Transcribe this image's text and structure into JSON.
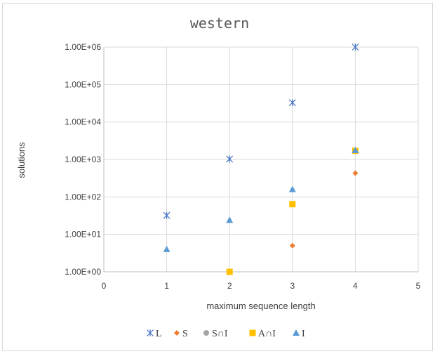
{
  "chart_data": {
    "type": "scatter",
    "title": "western",
    "xlabel": "maximum sequence length",
    "ylabel": "solutions",
    "xlim": [
      0,
      5
    ],
    "ylim": [
      1,
      1000000
    ],
    "yscale": "log",
    "xticks": [
      "0",
      "1",
      "2",
      "3",
      "4",
      "5"
    ],
    "yticks": [
      "1.00E+00",
      "1.00E+01",
      "1.00E+02",
      "1.00E+03",
      "1.00E+04",
      "1.00E+05",
      "1.00E+06"
    ],
    "grid": true,
    "legend_position": "bottom",
    "series": [
      {
        "name": "L",
        "marker": "asterisk",
        "color": "#4472C4",
        "x": [
          1,
          2,
          3,
          4
        ],
        "y": [
          32,
          1024,
          32768,
          1000000
        ]
      },
      {
        "name": "S",
        "marker": "diamond",
        "color": "#ED7D31",
        "x": [
          3,
          4
        ],
        "y": [
          5,
          430
        ]
      },
      {
        "name": "S∩I",
        "marker": "circle",
        "color": "#A5A5A5",
        "x": [],
        "y": []
      },
      {
        "name": "A∩I",
        "marker": "square",
        "color": "#FFC000",
        "x": [
          2,
          3,
          4
        ],
        "y": [
          1,
          64,
          1700
        ]
      },
      {
        "name": "I",
        "marker": "triangle",
        "color": "#5B9BD5",
        "x": [
          1,
          2,
          3,
          4
        ],
        "y": [
          4,
          24,
          160,
          1750
        ]
      }
    ]
  }
}
